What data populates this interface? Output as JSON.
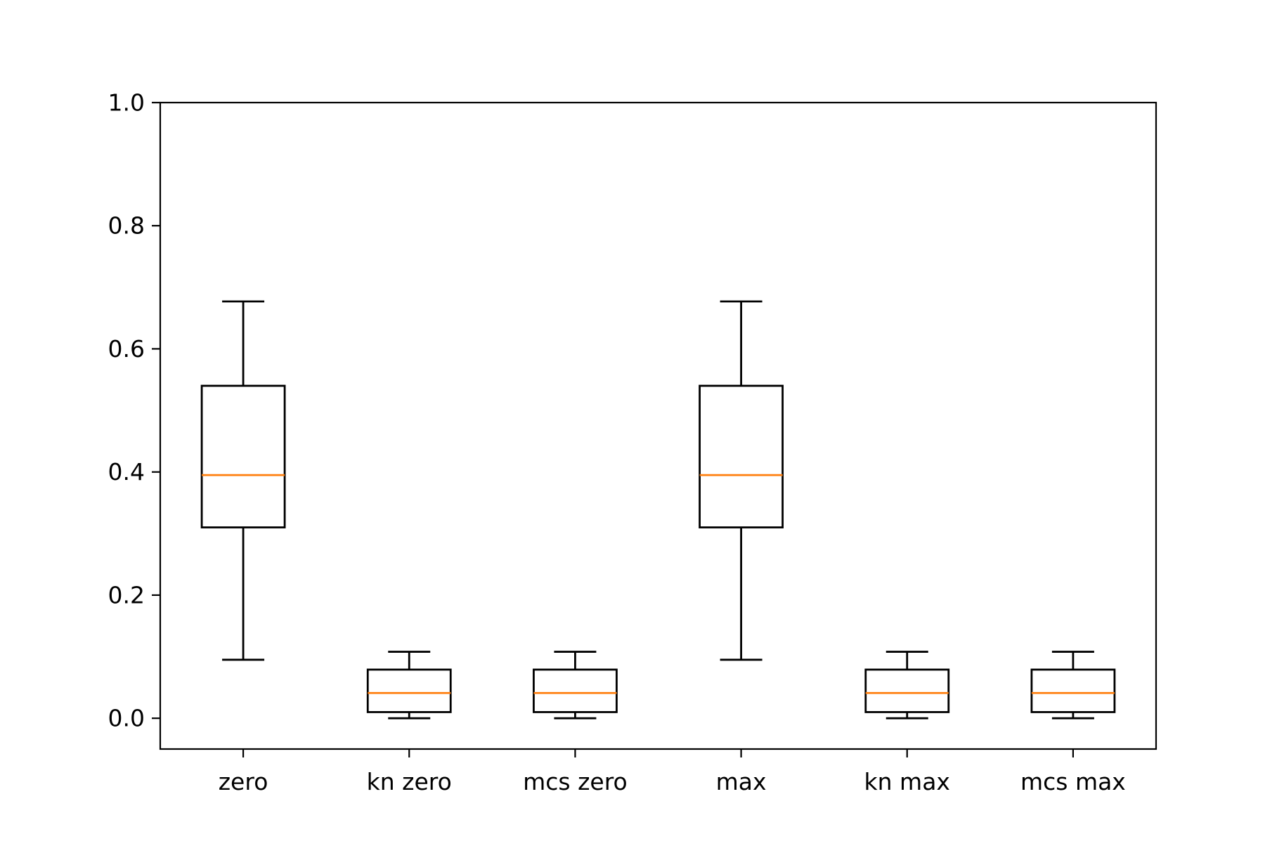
{
  "chart_data": {
    "type": "box",
    "title": "",
    "xlabel": "",
    "ylabel": "",
    "ylim": [
      -0.05,
      1.0
    ],
    "yticks": [
      0.0,
      0.2,
      0.4,
      0.6,
      0.8,
      1.0
    ],
    "ytick_labels": [
      "0.0",
      "0.2",
      "0.4",
      "0.6",
      "0.8",
      "1.0"
    ],
    "grid": false,
    "legend": "none",
    "categories": [
      "zero",
      "kn zero",
      "mcs zero",
      "max",
      "kn max",
      "mcs max"
    ],
    "boxes": [
      {
        "whisker_low": 0.095,
        "q1": 0.31,
        "median": 0.395,
        "q3": 0.54,
        "whisker_high": 0.677
      },
      {
        "whisker_low": 0.0,
        "q1": 0.01,
        "median": 0.041,
        "q3": 0.079,
        "whisker_high": 0.108
      },
      {
        "whisker_low": 0.0,
        "q1": 0.01,
        "median": 0.041,
        "q3": 0.079,
        "whisker_high": 0.108
      },
      {
        "whisker_low": 0.095,
        "q1": 0.31,
        "median": 0.395,
        "q3": 0.54,
        "whisker_high": 0.677
      },
      {
        "whisker_low": 0.0,
        "q1": 0.01,
        "median": 0.041,
        "q3": 0.079,
        "whisker_high": 0.108
      },
      {
        "whisker_low": 0.0,
        "q1": 0.01,
        "median": 0.041,
        "q3": 0.079,
        "whisker_high": 0.108
      }
    ],
    "colors": {
      "box": "#000000",
      "median": "#ff7f0e",
      "axes": "#000000"
    }
  }
}
